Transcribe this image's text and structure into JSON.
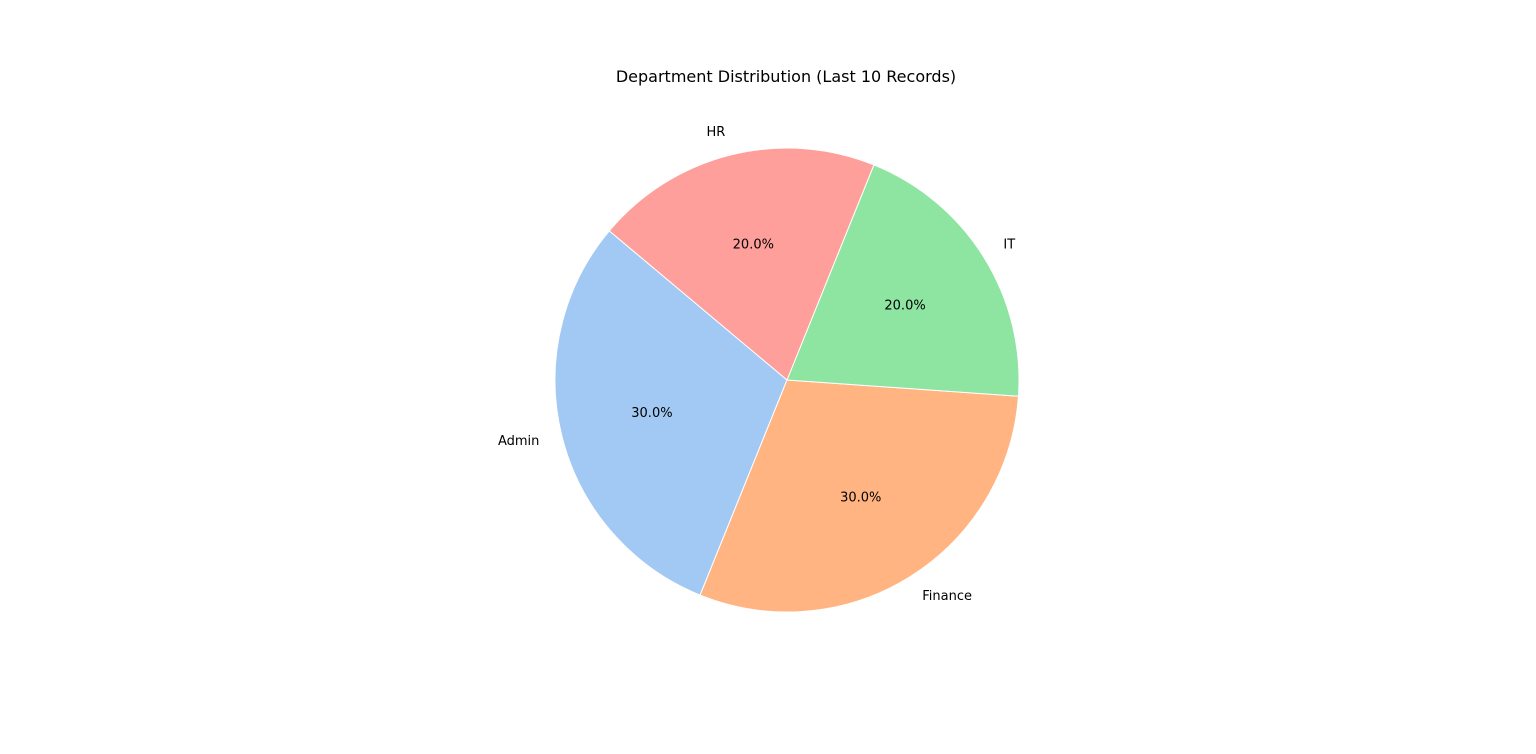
{
  "chart_data": {
    "type": "pie",
    "title": "Department Distribution (Last 10 Records)",
    "categories": [
      "Admin",
      "Finance",
      "IT",
      "HR"
    ],
    "values": [
      30,
      30,
      20,
      20
    ],
    "percent_labels": [
      "30.0%",
      "30.0%",
      "20.0%",
      "20.0%"
    ],
    "colors": [
      "#a1c9f4",
      "#ffb482",
      "#8de5a1",
      "#ff9f9b"
    ],
    "start_angle_deg": 140,
    "direction": "counterclockwise",
    "legend": "none"
  }
}
